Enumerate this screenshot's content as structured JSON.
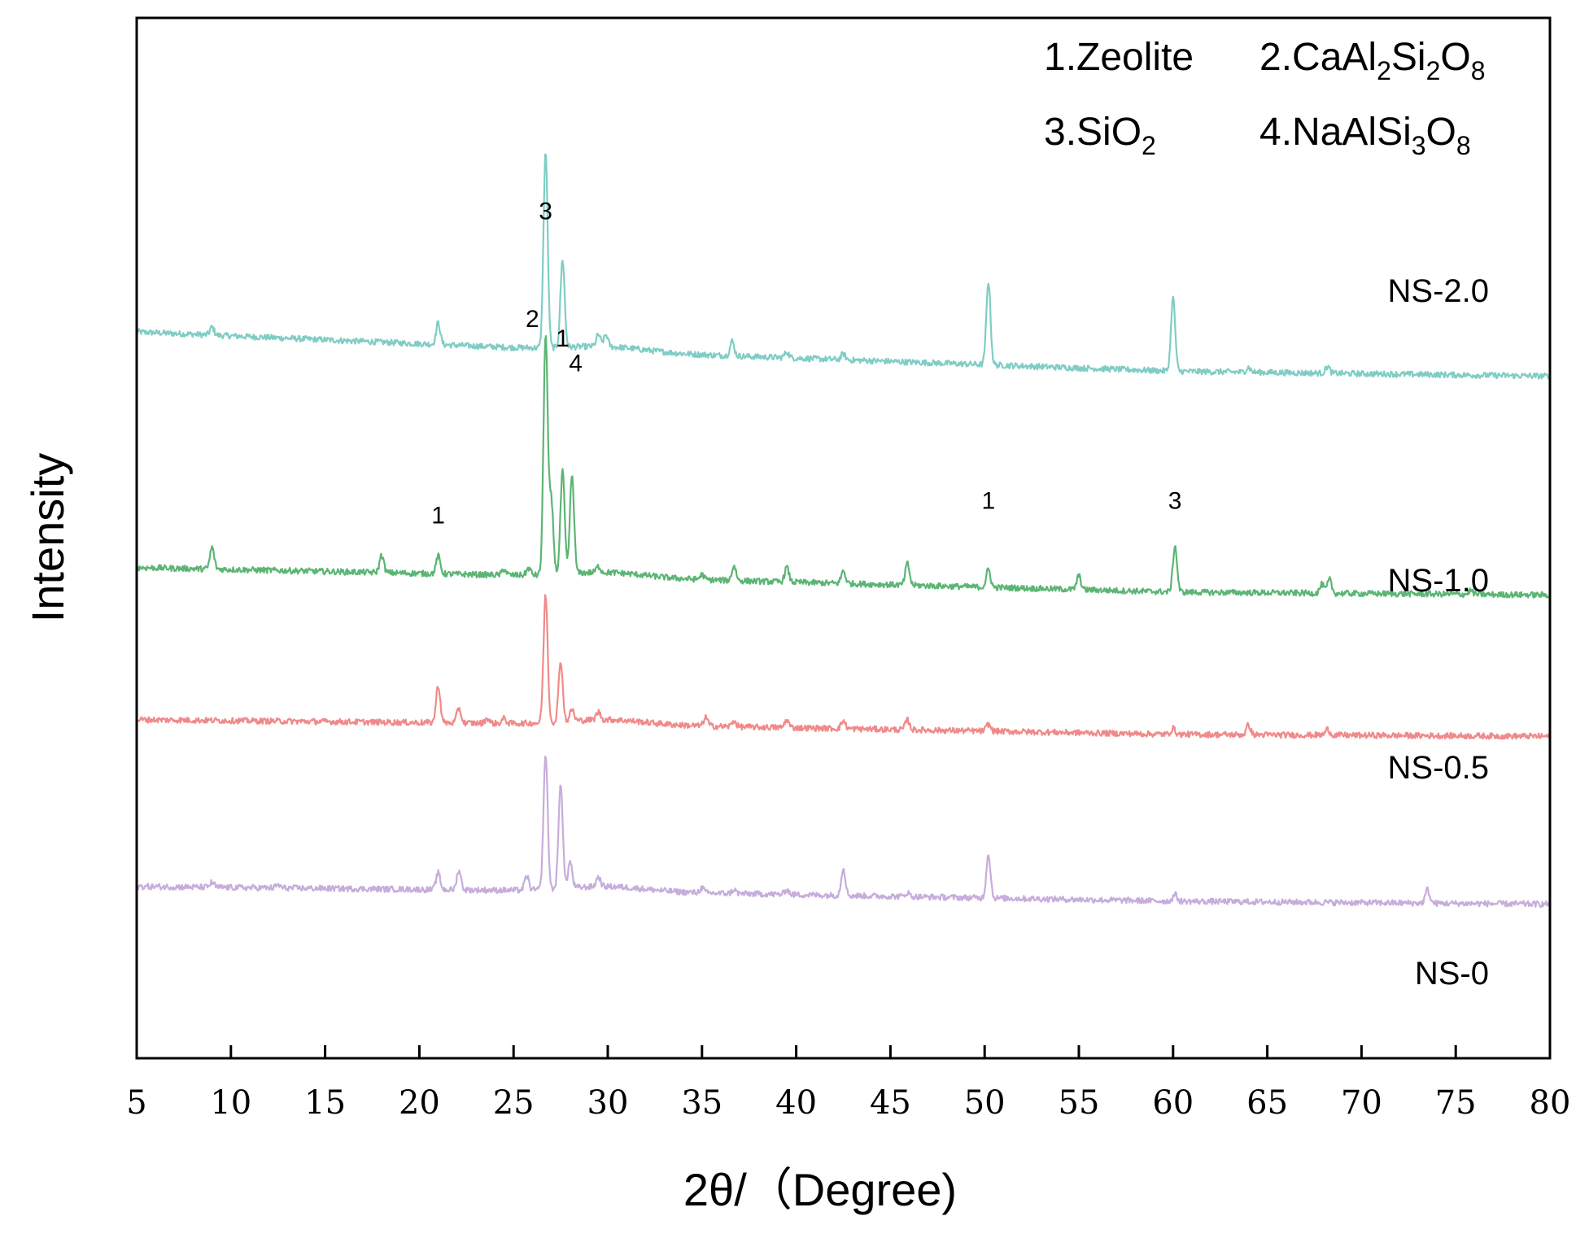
{
  "chart_data": {
    "type": "line",
    "xlabel": "2θ/（Degree)",
    "ylabel": "Intensity",
    "xlim": [
      5,
      80
    ],
    "xticks": [
      "5",
      "10",
      "15",
      "20",
      "25",
      "30",
      "35",
      "40",
      "45",
      "50",
      "55",
      "60",
      "65",
      "70",
      "75",
      "80"
    ],
    "grid": false,
    "legend": {
      "placement": "top-right",
      "items": [
        {
          "text": "1.Zeolite",
          "base": "1.Zeolite",
          "sub": ""
        },
        {
          "text": "2.CaAl2Si2O8",
          "parts": [
            [
              "2.CaAl",
              ""
            ],
            [
              "2",
              "sub"
            ],
            [
              "Si",
              ""
            ],
            [
              "2",
              "sub"
            ],
            [
              "O",
              ""
            ],
            [
              "8",
              "sub"
            ]
          ]
        },
        {
          "text": "3.SiO2",
          "parts": [
            [
              "3.SiO",
              ""
            ],
            [
              "2",
              "sub"
            ]
          ]
        },
        {
          "text": "4.NaAlSi3O8",
          "parts": [
            [
              "4.NaAlSi",
              ""
            ],
            [
              "3",
              "sub"
            ],
            [
              "O",
              ""
            ],
            [
              "8",
              "sub"
            ]
          ]
        }
      ]
    },
    "series": [
      {
        "name": "NS-2.0",
        "color": "#7fcdc4",
        "baseline": [
          [
            5,
            7.4
          ],
          [
            30,
            7.2
          ],
          [
            60,
            7.0
          ],
          [
            80,
            6.95
          ]
        ],
        "peaks": [
          [
            9,
            0.08
          ],
          [
            21,
            0.22
          ],
          [
            26.7,
            2.0
          ],
          [
            27.6,
            0.9
          ],
          [
            29.5,
            0.12
          ],
          [
            29.9,
            0.12
          ],
          [
            36.6,
            0.15
          ],
          [
            39.5,
            0.06
          ],
          [
            42.5,
            0.06
          ],
          [
            50.2,
            0.85
          ],
          [
            60.0,
            0.75
          ],
          [
            64,
            0.05
          ],
          [
            68.2,
            0.07
          ]
        ]
      },
      {
        "name": "NS-1.0",
        "color": "#5cb574",
        "baseline": [
          [
            5,
            5.0
          ],
          [
            30,
            4.9
          ],
          [
            60,
            4.75
          ],
          [
            80,
            4.72
          ]
        ],
        "peaks": [
          [
            9,
            0.22
          ],
          [
            18,
            0.18
          ],
          [
            21,
            0.18
          ],
          [
            24.5,
            0.06
          ],
          [
            25.8,
            0.07
          ],
          [
            26.7,
            2.45
          ],
          [
            27.0,
            0.75
          ],
          [
            27.6,
            1.05
          ],
          [
            28.1,
            1.0
          ],
          [
            29.5,
            0.06
          ],
          [
            35,
            0.05
          ],
          [
            36.7,
            0.15
          ],
          [
            39.5,
            0.15
          ],
          [
            42.5,
            0.13
          ],
          [
            45.9,
            0.22
          ],
          [
            50.2,
            0.18
          ],
          [
            55,
            0.14
          ],
          [
            60.1,
            0.47
          ],
          [
            67.9,
            0.09
          ],
          [
            68.3,
            0.14
          ],
          [
            75.8,
            0.04
          ]
        ]
      },
      {
        "name": "NS-0.5",
        "color": "#f08a8a",
        "baseline": [
          [
            5,
            3.45
          ],
          [
            30,
            3.4
          ],
          [
            60,
            3.3
          ],
          [
            80,
            3.28
          ]
        ],
        "peaks": [
          [
            21,
            0.38
          ],
          [
            22.1,
            0.15
          ],
          [
            23.6,
            0.05
          ],
          [
            24.5,
            0.05
          ],
          [
            26.7,
            1.3
          ],
          [
            27.5,
            0.62
          ],
          [
            28.1,
            0.12
          ],
          [
            29.5,
            0.08
          ],
          [
            35.2,
            0.09
          ],
          [
            36.7,
            0.06
          ],
          [
            39.5,
            0.08
          ],
          [
            42.5,
            0.08
          ],
          [
            45.9,
            0.1
          ],
          [
            50.2,
            0.07
          ],
          [
            60.0,
            0.06
          ],
          [
            64,
            0.1
          ],
          [
            68.2,
            0.06
          ]
        ]
      },
      {
        "name": "NS-0",
        "color": "#c6addb",
        "baseline": [
          [
            5,
            1.75
          ],
          [
            30,
            1.7
          ],
          [
            60,
            1.6
          ],
          [
            80,
            1.57
          ]
        ],
        "peaks": [
          [
            9,
            0.05
          ],
          [
            12.5,
            0.03
          ],
          [
            21,
            0.17
          ],
          [
            22.1,
            0.2
          ],
          [
            25.7,
            0.14
          ],
          [
            26.7,
            1.38
          ],
          [
            27.5,
            1.08
          ],
          [
            28.0,
            0.27
          ],
          [
            29.5,
            0.1
          ],
          [
            35,
            0.05
          ],
          [
            36.7,
            0.04
          ],
          [
            39.5,
            0.05
          ],
          [
            42.5,
            0.28
          ],
          [
            45.9,
            0.04
          ],
          [
            50.2,
            0.45
          ],
          [
            60.1,
            0.07
          ],
          [
            73.5,
            0.14
          ]
        ]
      }
    ],
    "peak_labels": [
      {
        "text": "3",
        "x": 26.7,
        "y": 8.55
      },
      {
        "text": "2",
        "x": 26.0,
        "y": 7.45
      },
      {
        "text": "1",
        "x": 27.6,
        "y": 7.25
      },
      {
        "text": "4",
        "x": 28.3,
        "y": 7.0
      },
      {
        "text": "1",
        "x": 21,
        "y": 5.45
      },
      {
        "text": "1",
        "x": 50.2,
        "y": 5.6
      },
      {
        "text": "3",
        "x": 60.1,
        "y": 5.6
      }
    ]
  }
}
